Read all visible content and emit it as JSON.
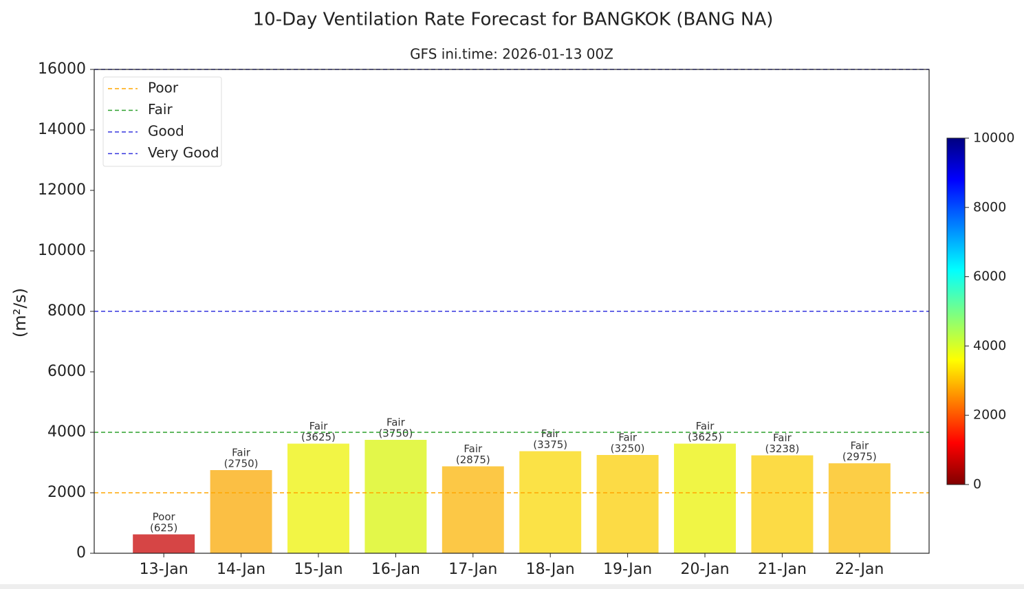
{
  "chart_data": {
    "type": "bar",
    "title": "10-Day Ventilation Rate Forecast for BANGKOK (BANG NA)",
    "subtitle": "GFS ini.time: 2026-01-13 00Z",
    "y_label": "(m²/s)",
    "categories": [
      "13-Jan",
      "14-Jan",
      "15-Jan",
      "16-Jan",
      "17-Jan",
      "18-Jan",
      "19-Jan",
      "20-Jan",
      "21-Jan",
      "22-Jan"
    ],
    "values": [
      625,
      2750,
      3625,
      3750,
      2875,
      3375,
      3250,
      3625,
      3238,
      2975
    ],
    "value_labels": [
      "(625)",
      "(2750)",
      "(3625)",
      "(3750)",
      "(2875)",
      "(3375)",
      "(3250)",
      "(3625)",
      "(3238)",
      "(2975)"
    ],
    "ratings": [
      "Poor",
      "Fair",
      "Fair",
      "Fair",
      "Fair",
      "Fair",
      "Fair",
      "Fair",
      "Fair",
      "Fair"
    ],
    "colors": [
      "#d64545",
      "#fbbf44",
      "#f2f545",
      "#e3f74a",
      "#fcc846",
      "#fbe246",
      "#fcdb45",
      "#f0f545",
      "#fcdb45",
      "#fcce46"
    ],
    "ylim": [
      0,
      16000
    ],
    "yticks": [
      0,
      2000,
      4000,
      6000,
      8000,
      10000,
      12000,
      14000,
      16000
    ],
    "thresholds": [
      {
        "name": "Poor",
        "color": "#ffa500",
        "value": 2000
      },
      {
        "name": "Fair",
        "color": "#2ca02c",
        "value": 4000
      },
      {
        "name": "Good",
        "color": "#3333dd",
        "value": 8000
      },
      {
        "name": "Very Good",
        "color": "#3333dd",
        "value": 16000
      }
    ],
    "legend": "upper left",
    "colorbar": {
      "lim": [
        0,
        10000
      ],
      "ticks": [
        0,
        2000,
        4000,
        6000,
        8000,
        10000
      ],
      "colormap": "jet"
    }
  }
}
